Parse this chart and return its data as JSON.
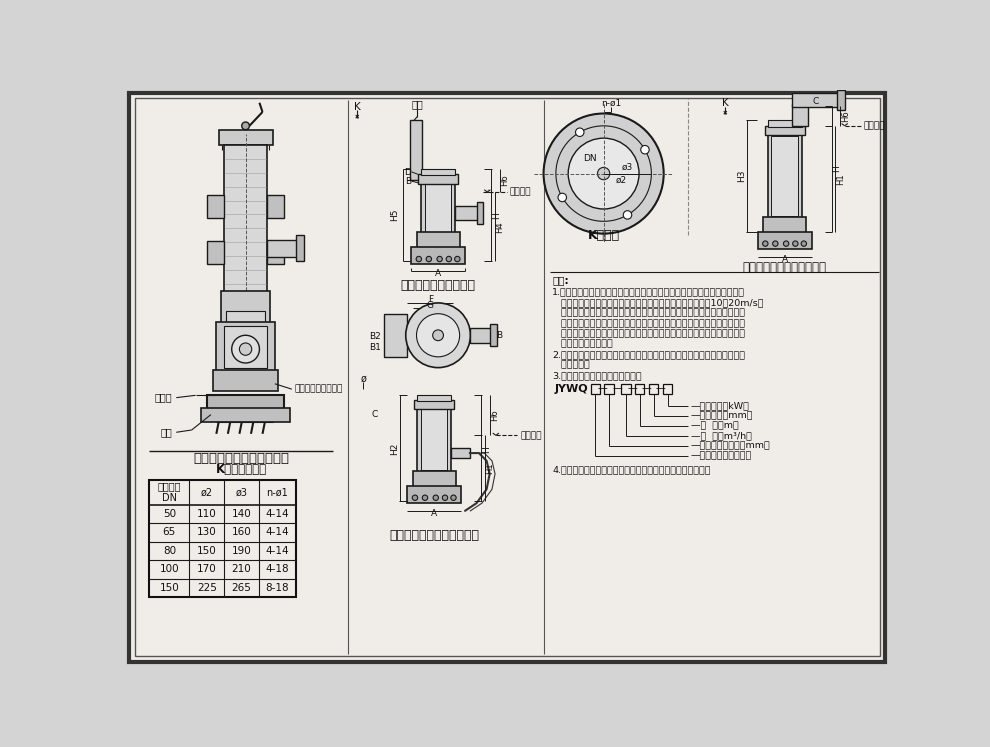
{
  "bg_color": "#d4d4d4",
  "inner_bg": "#f0ede8",
  "table_title": "K向法兰尺寸表",
  "table_headers": [
    "出口直径\nDN",
    "ø2",
    "ø3",
    "n-ø1"
  ],
  "table_rows": [
    [
      "50",
      "110",
      "140",
      "4-14"
    ],
    [
      "65",
      "130",
      "160",
      "4-14"
    ],
    [
      "80",
      "150",
      "190",
      "4-14"
    ],
    [
      "100",
      "170",
      "210",
      "4-18"
    ],
    [
      "150",
      "225",
      "265",
      "8-18"
    ]
  ],
  "pump_title": "自动搅匀潜污泵构造示意图",
  "diagram1_title": "固定自藕式安装外形图",
  "diagram2_title": "软管连接移动式安装外形图",
  "diagram3_title": "K向放大",
  "diagram4_title": "硬管连接固定式安装外形图",
  "note1_lines": [
    "说明:",
    "1.自动搅匀潜水排污泵系在普通型潜水排污泵的基础上设计有一个特殊的引",
    "   水装置，利用泵腔中的压力水流，随着电机的高速旋转，以10～20m/s的",
    "   旋流速度冲洗污水池（集水坑）底部，将沉淀物搅匀搅散后随水流排出，",
    "   防止污水池（集水坑）沉淀物堆积固化，适用于厨房含油废水及含有粪便",
    "   的生活污水、含泥砂量较多的地下汽车库废水等沉淀物较多，停留时间较",
    "   长的污、废水抽升。",
    "2.该泵泵体材质有铸铁和不锈钢两种，若用于抽升腐蚀性液体时，应选用不",
    "   锈钢材质。",
    "3.自动搅匀潜水排污泵型号意义："
  ],
  "model_labels": [
    "电机功率（kW）",
    "搅匀直径（mm）",
    "扬  程（m）",
    "流  量（m³/h）",
    "排出口公称直径（mm）",
    "自动搅匀潜水排污泵"
  ],
  "note4": "4.本页根据上海熊猫机械（集团）有限公司提供的资料编制。",
  "label_底板": "底板",
  "label_圆螺母": "圆螺母",
  "label_搅匀头": "搅匀头组合（组件）",
  "label_导轨": "导轨",
  "label_最低水位": "最低水位"
}
